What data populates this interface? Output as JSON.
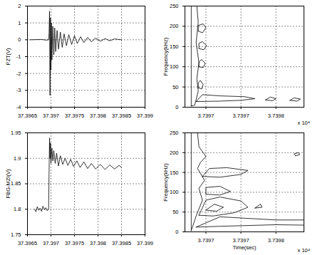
{
  "chart_data": [
    {
      "type": "line",
      "ylabel": "PZT(V)",
      "color": "#000000",
      "grid": true,
      "xlim": [
        37.3965,
        37.399
      ],
      "xticks": [
        37.3965,
        37.397,
        37.3975,
        37.398,
        37.3985,
        37.399
      ],
      "ylim": [
        -4,
        2
      ],
      "yticks": [
        -4,
        -3,
        -2,
        -1,
        0,
        1,
        2
      ],
      "x": [
        37.39655,
        37.3968,
        37.3969,
        37.39695,
        37.39696,
        37.39697,
        37.39698,
        37.39699,
        37.397,
        37.39701,
        37.39702,
        37.39704,
        37.39706,
        37.39708,
        37.3971,
        37.39713,
        37.39716,
        37.3972,
        37.39724,
        37.39728,
        37.39733,
        37.39738,
        37.39744,
        37.3975,
        37.39756,
        37.39763,
        37.3977,
        37.39778,
        37.39786,
        37.39795,
        37.39805,
        37.39815,
        37.39825,
        37.39835,
        37.3985
      ],
      "values": [
        0,
        0.02,
        -0.02,
        0,
        0.4,
        1.7,
        -3.3,
        1.3,
        -1.8,
        1.0,
        -1.2,
        0.8,
        -0.9,
        0.7,
        -0.7,
        0.55,
        -0.55,
        0.45,
        -0.45,
        0.35,
        -0.35,
        0.3,
        -0.28,
        0.24,
        -0.22,
        0.18,
        -0.17,
        0.14,
        -0.12,
        0.1,
        -0.09,
        0.07,
        -0.06,
        0.05,
        0
      ]
    },
    {
      "type": "contour",
      "ylabel": "Frequency(kHz)",
      "color": "#000000",
      "grid": true,
      "annotations": [
        "x 10⁴"
      ],
      "xlim": [
        3.73967,
        3.73984
      ],
      "xticks": [
        {
          "value": 3.7397,
          "label": "3.7397"
        },
        {
          "value": 3.73975,
          "label": "3.7397"
        },
        {
          "value": 3.7398,
          "label": "3.7398"
        }
      ],
      "ylim": [
        0,
        250
      ],
      "yticks": [
        0,
        50,
        100,
        150,
        200,
        250
      ],
      "contours": [
        {
          "x": [
            3.739679,
            3.739679,
            3.739687,
            3.739689,
            3.739686,
            3.73969,
            3.739687,
            3.739689,
            3.739684,
            3.739679
          ],
          "y": [
            3,
            250,
            250,
            210,
            160,
            110,
            70,
            40,
            5,
            3
          ]
        },
        {
          "x": [
            3.739689,
            3.739695,
            3.7397,
            3.739696,
            3.739689,
            3.739689
          ],
          "y": [
            188,
            184,
            196,
            206,
            202,
            188
          ]
        },
        {
          "x": [
            3.73969,
            3.739697,
            3.739701,
            3.739695,
            3.73969,
            3.73969
          ],
          "y": [
            145,
            142,
            152,
            162,
            158,
            145
          ]
        },
        {
          "x": [
            3.73969,
            3.739696,
            3.739699,
            3.739694,
            3.73969,
            3.73969
          ],
          "y": [
            100,
            98,
            108,
            118,
            112,
            100
          ]
        },
        {
          "x": [
            3.739689,
            3.739694,
            3.739696,
            3.739692,
            3.739689,
            3.739689
          ],
          "y": [
            48,
            45,
            56,
            66,
            60,
            48
          ]
        },
        {
          "x": [
            3.739686,
            3.73972,
            3.73975,
            3.73977,
            3.739755,
            3.73972,
            3.739695,
            3.739686
          ],
          "y": [
            14,
            15,
            17,
            21,
            26,
            28,
            31,
            14
          ]
        },
        {
          "x": [
            3.739785,
            3.739795,
            3.7398,
            3.739792,
            3.739785
          ],
          "y": [
            18,
            16,
            21,
            25,
            18
          ]
        },
        {
          "x": [
            3.73982,
            3.73983,
            3.739835,
            3.739826,
            3.73982
          ],
          "y": [
            17,
            15,
            20,
            23,
            17
          ]
        }
      ]
    },
    {
      "type": "line",
      "ylabel": "FBG-MZI(V)",
      "color": "#000000",
      "grid": true,
      "xlim": [
        37.3965,
        37.399
      ],
      "xticks": [
        37.3965,
        37.397,
        37.3975,
        37.398,
        37.3985,
        37.399
      ],
      "ylim": [
        1.75,
        1.95
      ],
      "yticks": [
        1.75,
        1.8,
        1.85,
        1.9,
        1.95
      ],
      "x": [
        37.39665,
        37.39668,
        37.39671,
        37.39674,
        37.39677,
        37.3968,
        37.39683,
        37.39686,
        37.39689,
        37.39692,
        37.39695,
        37.39697,
        37.39698,
        37.39699,
        37.397,
        37.39702,
        37.39704,
        37.39706,
        37.39709,
        37.39712,
        37.39716,
        37.3972,
        37.39725,
        37.3973,
        37.39736,
        37.39742,
        37.39748,
        37.39755,
        37.39762,
        37.3977,
        37.39778,
        37.39786,
        37.39795,
        37.39805,
        37.39815,
        37.39825,
        37.39835,
        37.39845,
        37.3985
      ],
      "values": [
        1.8,
        1.795,
        1.805,
        1.798,
        1.802,
        1.796,
        1.806,
        1.799,
        1.803,
        1.797,
        1.8,
        1.94,
        1.9,
        1.93,
        1.89,
        1.92,
        1.895,
        1.915,
        1.89,
        1.91,
        1.885,
        1.905,
        1.888,
        1.9,
        1.886,
        1.898,
        1.884,
        1.895,
        1.882,
        1.893,
        1.88,
        1.89,
        1.879,
        1.888,
        1.878,
        1.887,
        1.879,
        1.886,
        1.882
      ]
    },
    {
      "type": "contour",
      "xlabel": "Time(sec)",
      "ylabel": "Frequency(kHz)",
      "color": "#000000",
      "grid": true,
      "annotations": [
        "x 10⁴"
      ],
      "xlim": [
        3.73967,
        3.73984
      ],
      "xticks": [
        {
          "value": 3.7397,
          "label": "3.7397"
        },
        {
          "value": 3.73975,
          "label": "3.7397"
        },
        {
          "value": 3.7398,
          "label": "3.7398"
        }
      ],
      "ylim": [
        0,
        250
      ],
      "yticks": [
        0,
        50,
        100,
        150,
        200,
        250
      ],
      "contours": [
        {
          "x": [
            3.739679,
            3.739679,
            3.739688,
            3.73969,
            3.7397,
            3.739692,
            3.739688,
            3.739698,
            3.73969,
            3.739695,
            3.739686,
            3.739679
          ],
          "y": [
            3,
            250,
            250,
            215,
            190,
            175,
            160,
            130,
            110,
            80,
            40,
            3
          ]
        },
        {
          "x": [
            3.739695,
            3.73972,
            3.73975,
            3.73976,
            3.73973,
            3.739705,
            3.739695
          ],
          "y": [
            140,
            138,
            145,
            155,
            162,
            160,
            140
          ]
        },
        {
          "x": [
            3.7397,
            3.73972,
            3.739735,
            3.73972,
            3.7397,
            3.7397
          ],
          "y": [
            95,
            93,
            102,
            115,
            112,
            95
          ]
        },
        {
          "x": [
            3.73969,
            3.73971,
            3.73974,
            3.73976,
            3.73975,
            3.73972,
            3.7397,
            3.73969
          ],
          "y": [
            42,
            40,
            48,
            62,
            78,
            88,
            80,
            42
          ]
        },
        {
          "x": [
            3.739686,
            3.73972,
            3.73976,
            3.7398,
            3.73984,
            3.73984,
            3.7398,
            3.73976,
            3.73972,
            3.739686
          ],
          "y": [
            12,
            14,
            16,
            18,
            17,
            30,
            30,
            34,
            38,
            12
          ]
        },
        {
          "x": [
            3.7397,
            3.739715,
            3.739725,
            3.739712,
            3.7397
          ],
          "y": [
            55,
            52,
            62,
            70,
            55
          ]
        },
        {
          "x": [
            3.739828,
            3.739834,
            3.739832,
            3.739826,
            3.739828
          ],
          "y": [
            192,
            195,
            200,
            197,
            192
          ]
        },
        {
          "x": [
            3.73977,
            3.73978,
            3.739778,
            3.73977
          ],
          "y": [
            60,
            62,
            70,
            60
          ]
        }
      ]
    }
  ]
}
